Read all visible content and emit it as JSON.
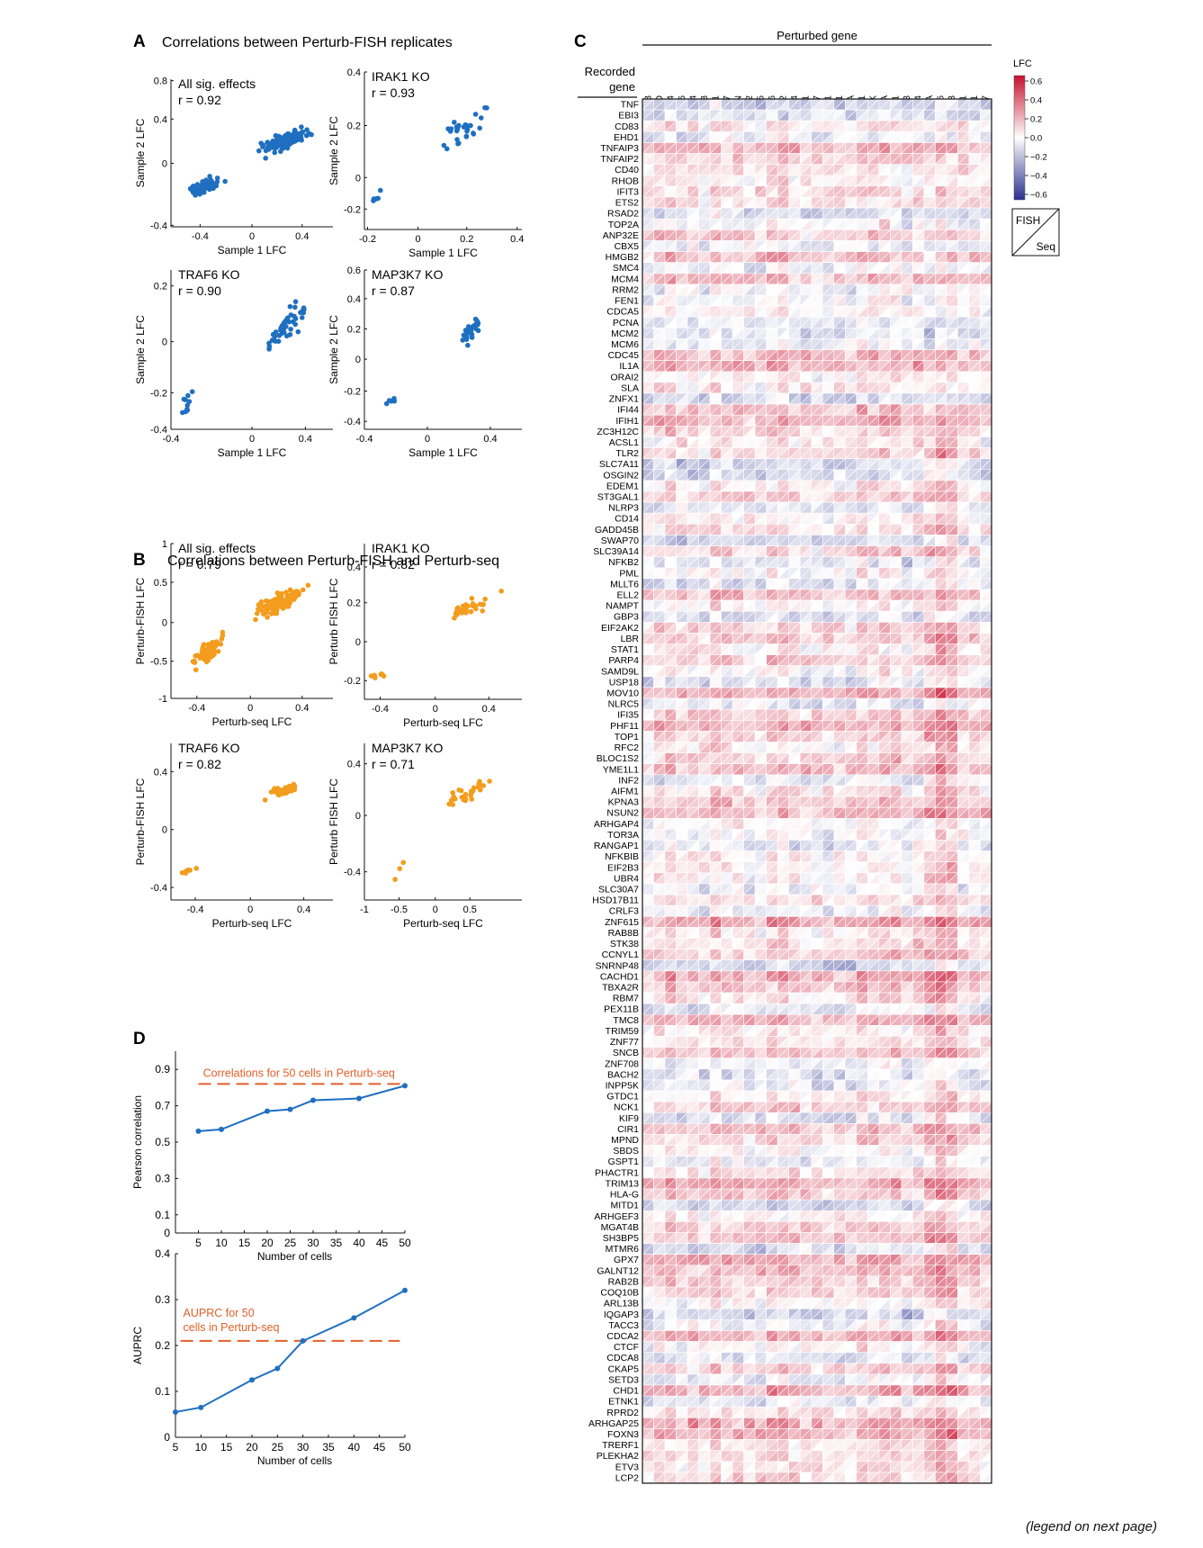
{
  "colors": {
    "blue": "#1f6fc0",
    "orange": "#f39c1e",
    "ref_dashed": "#e0602a",
    "red": "#d7191c",
    "navy": "#2c3e9a"
  },
  "panelA": {
    "letter": "A",
    "title": "Correlations between Perturb-FISH replicates",
    "plots": [
      {
        "label": "All sig. effects",
        "r": "r = 0.92",
        "xlabel": "Sample 1 LFC",
        "ylabel": "Sample 2 LFC",
        "xticks": [
          "-0.4",
          "0",
          "0.4"
        ],
        "yticks": [
          "0.8",
          "0.4",
          "0",
          "-0.4"
        ]
      },
      {
        "label": "IRAK1 KO",
        "r": "r = 0.93",
        "xlabel": "Sample 1 LFC",
        "ylabel": "Sample 2 LFC",
        "xticks": [
          "-0.2",
          "0",
          "0.2",
          "0.4"
        ],
        "yticks": [
          "0.4",
          "0.2",
          "0",
          "-0.2"
        ]
      },
      {
        "label": "TRAF6 KO",
        "r": "r = 0.90",
        "xlabel": "Sample 1 LFC",
        "ylabel": "Sample 2 LFC",
        "xticks": [
          "-0.4",
          "0",
          "0.4"
        ],
        "yticks": [
          "0.2",
          "0",
          "-0.2",
          "-0.4"
        ]
      },
      {
        "label": "MAP3K7 KO",
        "r": "r = 0.87",
        "xlabel": "Sample 1 LFC",
        "ylabel": "Sample 2 LFC",
        "xticks": [
          "-0.4",
          "0",
          "0.4"
        ],
        "yticks": [
          "0.6",
          "0.4",
          "0.2",
          "0",
          "-0.2",
          "-0.4"
        ]
      }
    ]
  },
  "panelB": {
    "letter": "B",
    "title": "Correlations between Perturb-FISH and Perturb-seq",
    "plots": [
      {
        "label": "All sig. effects",
        "r": "r = 0.79",
        "xlabel": "Perturb-seq LFC",
        "ylabel": "Perturb-FISH LFC",
        "xticks": [
          "-0.4",
          "0",
          "0.4"
        ],
        "yticks": [
          "1",
          "0.5",
          "0",
          "-0.5",
          "-1"
        ]
      },
      {
        "label": "IRAK1 KO",
        "r": "r = 0.82",
        "xlabel": "Perturb-seq LFC",
        "ylabel": "Perturb FISH LFC",
        "xticks": [
          "-0.4",
          "0",
          "0.4"
        ],
        "yticks": [
          "0.4",
          "0.2",
          "0",
          "-0.2"
        ]
      },
      {
        "label": "TRAF6 KO",
        "r": "r = 0.82",
        "xlabel": "Perturb-seq LFC",
        "ylabel": "Perturb-FISH LFC",
        "xticks": [
          "-0.4",
          "0",
          "0.4"
        ],
        "yticks": [
          "0.4",
          "0",
          "-0.4"
        ]
      },
      {
        "label": "MAP3K7 KO",
        "r": "r = 0.71",
        "xlabel": "Perturb-seq LFC",
        "ylabel": "Perturb FISH LFC",
        "xticks": [
          "-1",
          "-0.5",
          "0",
          "0.5"
        ],
        "yticks": [
          "0.4",
          "0",
          "-0.4"
        ]
      }
    ]
  },
  "panelC": {
    "letter": "C",
    "top_label": "Perturbed gene",
    "row_header": [
      "Recorded",
      "gene"
    ],
    "legend_title": "LFC",
    "legend_ticks": [
      "0.6",
      "0.4",
      "0.2",
      "0.0",
      "−0.2",
      "−0.4",
      "−0.6"
    ],
    "key_fish": "FISH",
    "key_seq": "Seq",
    "columns": [
      "IKBKB",
      "TRADD",
      "CD14",
      "LY96",
      "TLR4",
      "IRF3",
      "TICAM1",
      "IRF7",
      "JUN",
      "TAB2",
      "IRF5",
      "MAP2K6",
      "MAP2K2",
      "MAP2K4",
      "MAP2K1",
      "MAP2K7",
      "TBK1",
      "PELI1",
      "NFKBIA",
      "RIPK1",
      "CHUK",
      "PIK3CA",
      "TAB1",
      "MAP2K3",
      "MAPK14",
      "RELA",
      "TRAF6",
      "TRAF3",
      "NFKB1",
      "IRAK1",
      "MAP3K7"
    ],
    "rows": [
      "TNF",
      "EBI3",
      "CD83",
      "EHD1",
      "TNFAIP3",
      "TNFAIP2",
      "CD40",
      "RHOB",
      "IFIT3",
      "ETS2",
      "RSAD2",
      "TOP2A",
      "ANP32E",
      "CBX5",
      "HMGB2",
      "SMC4",
      "MCM4",
      "RRM2",
      "FEN1",
      "CDCA5",
      "PCNA",
      "MCM2",
      "MCM6",
      "CDC45",
      "IL1A",
      "ORAI2",
      "SLA",
      "ZNFX1",
      "IFI44",
      "IFIH1",
      "ZC3H12C",
      "ACSL1",
      "TLR2",
      "SLC7A11",
      "OSGIN2",
      "EDEM1",
      "ST3GAL1",
      "NLRP3",
      "CD14",
      "GADD45B",
      "SWAP70",
      "SLC39A14",
      "NFKB2",
      "PML",
      "MLLT6",
      "ELL2",
      "NAMPT",
      "GBP3",
      "EIF2AK2",
      "LBR",
      "STAT1",
      "PARP4",
      "SAMD9L",
      "USP18",
      "MOV10",
      "NLRC5",
      "IFI35",
      "PHF11",
      "TOP1",
      "RFC2",
      "BLOC1S2",
      "YME1L1",
      "INF2",
      "AIFM1",
      "KPNA3",
      "NSUN2",
      "ARHGAP4",
      "TOR3A",
      "RANGAP1",
      "NFKBIB",
      "EIF2B3",
      "UBR4",
      "SLC30A7",
      "HSD17B11",
      "CRLF3",
      "ZNF615",
      "RAB8B",
      "STK38",
      "CCNYL1",
      "SNRNP48",
      "CACHD1",
      "TBXA2R",
      "RBM7",
      "PEX11B",
      "TMC8",
      "TRIM59",
      "ZNF77",
      "SNCB",
      "ZNF708",
      "BACH2",
      "INPP5K",
      "GTDC1",
      "NCK1",
      "KIF9",
      "CIR1",
      "MPND",
      "SBDS",
      "GSPT1",
      "PHACTR1",
      "TRIM13",
      "HLA-G",
      "MITD1",
      "ARHGEF3",
      "MGAT4B",
      "SH3BP5",
      "MTMR6",
      "GPX7",
      "GALNT12",
      "RAB2B",
      "COQ10B",
      "ARL13B",
      "IQGAP3",
      "TACC3",
      "CDCA2",
      "CTCF",
      "CDCA8",
      "CKAP5",
      "SETD3",
      "CHD1",
      "ETNK1",
      "RPRD2",
      "ARHGAP25",
      "FOXN3",
      "TRERF1",
      "PLEKHA2",
      "ETV3",
      "LCP2"
    ]
  },
  "panelD": {
    "letter": "D",
    "top": {
      "ylabel": "Pearson correlation",
      "xlabel": "Number of cells",
      "ref_label": "Correlations for 50 cells in Perturb-seq",
      "yticks": [
        "0",
        "0.1",
        "0.3",
        "0.5",
        "0.7",
        "0.9"
      ],
      "xticks": [
        "5",
        "10",
        "15",
        "20",
        "25",
        "30",
        "35",
        "40",
        "45",
        "50"
      ]
    },
    "bottom": {
      "ylabel": "AUPRC",
      "xlabel": "Number of cells",
      "ref_label": [
        "AUPRC for 50",
        "cells in Perturb-seq"
      ],
      "yticks": [
        "0",
        "0.1",
        "0.2",
        "0.3",
        "0.4"
      ],
      "xticks": [
        "5",
        "10",
        "15",
        "20",
        "25",
        "30",
        "35",
        "40",
        "45",
        "50"
      ]
    }
  },
  "chart_data": [
    {
      "type": "line",
      "x": [
        5,
        10,
        20,
        25,
        30,
        40,
        50
      ],
      "values": [
        0.56,
        0.57,
        0.67,
        0.68,
        0.73,
        0.74,
        0.81
      ],
      "reference": 0.82,
      "xlim": [
        0,
        50
      ],
      "ylim": [
        0,
        1.0
      ],
      "xlabel": "Number of cells",
      "ylabel": "Pearson correlation"
    },
    {
      "type": "line",
      "x": [
        5,
        10,
        20,
        25,
        30,
        40,
        50
      ],
      "values": [
        0.055,
        0.065,
        0.125,
        0.15,
        0.21,
        0.26,
        0.32
      ],
      "reference": 0.21,
      "xlim": [
        5,
        50
      ],
      "ylim": [
        0,
        0.4
      ],
      "xlabel": "Number of cells",
      "ylabel": "AUPRC"
    }
  ],
  "footer": "(legend on next page)"
}
